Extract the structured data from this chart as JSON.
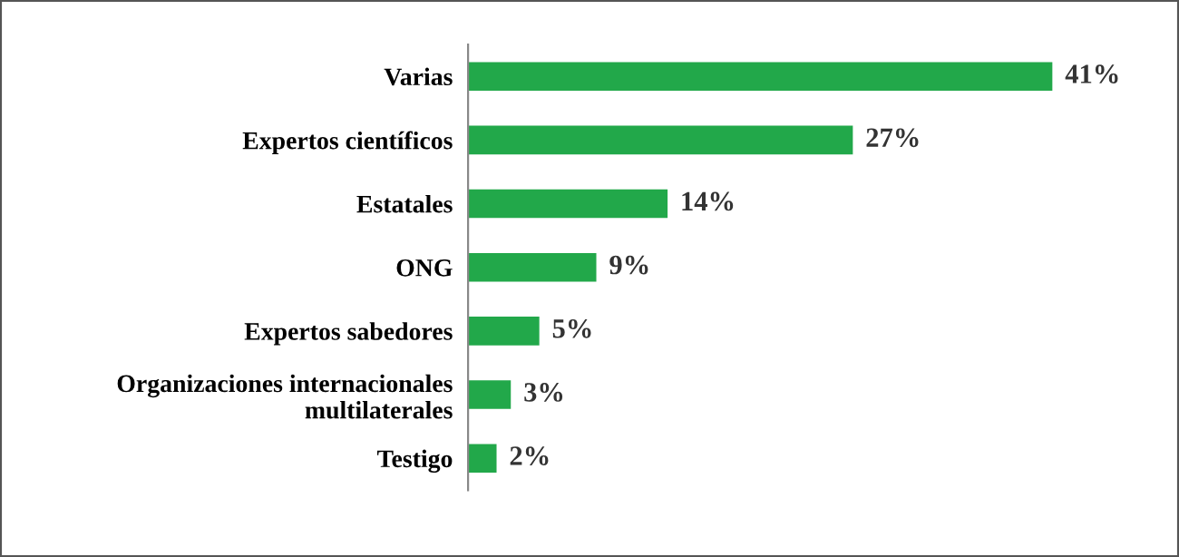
{
  "chart_data": {
    "type": "bar",
    "orientation": "horizontal",
    "categories": [
      "Varias",
      "Expertos científicos",
      "Estatales",
      "ONG",
      "Expertos sabedores",
      "Organizaciones internacionales\nmultilaterales",
      "Testigo"
    ],
    "values": [
      41,
      27,
      14,
      9,
      5,
      3,
      2
    ],
    "value_labels": [
      "41%",
      "27%",
      "14%",
      "9%",
      "5%",
      "3%",
      "2%"
    ],
    "color": "#22a84a",
    "grid": false,
    "legend": false
  }
}
